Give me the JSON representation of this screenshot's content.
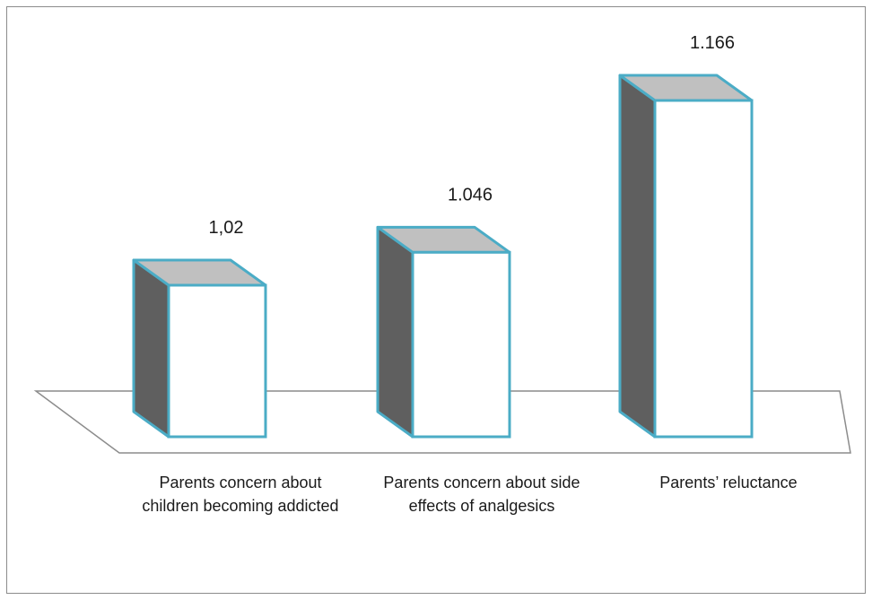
{
  "chart_data": {
    "type": "bar",
    "style": "3d-column",
    "categories": [
      "Parents concern about children becoming addicted",
      "Parents concern about side effects of analgesics",
      "Parents’ reluctance"
    ],
    "values": [
      1.02,
      1.046,
      1.166
    ],
    "data_labels": [
      "1,02",
      "1.046",
      "1.166"
    ],
    "title": "",
    "xlabel": "",
    "ylabel": "",
    "ylim": [
      0.95,
      1.2
    ],
    "grid": false,
    "legend": "none",
    "colors": {
      "bar_front": "#ffffff",
      "bar_side": "#5f5f5f",
      "bar_top": "#c0c0c0",
      "bar_outline": "#4bacc6",
      "floor_outline": "#8c8c8c",
      "frame": "#8c8c8c"
    }
  }
}
